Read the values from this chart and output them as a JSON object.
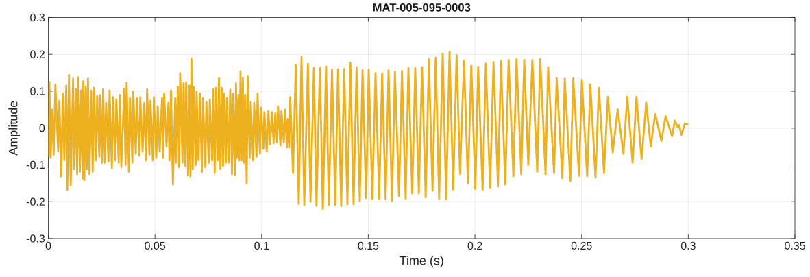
{
  "chart_data": {
    "type": "line",
    "title": "MAT-005-095-0003",
    "xlabel": "Time (s)",
    "ylabel": "Amplitude",
    "x": [
      0.0002,
      0.0005,
      0.0011,
      0.0018,
      0.0025,
      0.0033,
      0.0046,
      0.0052,
      0.006,
      0.0068,
      0.0075,
      0.0084,
      0.0089,
      0.0097,
      0.0105,
      0.0116,
      0.0122,
      0.0129,
      0.0135,
      0.014,
      0.0148,
      0.0153,
      0.0161,
      0.0164,
      0.0169,
      0.0175,
      0.018,
      0.0186,
      0.0193,
      0.0201,
      0.0208,
      0.0214,
      0.0223,
      0.0229,
      0.0239,
      0.0244,
      0.0251,
      0.0257,
      0.0265,
      0.0271,
      0.0282,
      0.0287,
      0.0298,
      0.0303,
      0.0314,
      0.0319,
      0.033,
      0.0335,
      0.0342,
      0.0356,
      0.0362,
      0.0367,
      0.0378,
      0.0383,
      0.0394,
      0.0398,
      0.041,
      0.0415,
      0.0426,
      0.0431,
      0.0442,
      0.045,
      0.0458,
      0.0463,
      0.0474,
      0.0479,
      0.049,
      0.0495,
      0.0506,
      0.0513,
      0.0522,
      0.0533,
      0.0538,
      0.0543,
      0.0554,
      0.0563,
      0.0568,
      0.0575,
      0.0584,
      0.0595,
      0.0599,
      0.0607,
      0.0613,
      0.0618,
      0.0629,
      0.0634,
      0.0642,
      0.0646,
      0.0655,
      0.0661,
      0.0666,
      0.0671,
      0.0677,
      0.0682,
      0.0691,
      0.0695,
      0.0704,
      0.0711,
      0.072,
      0.0725,
      0.0736,
      0.0741,
      0.0752,
      0.0757,
      0.0768,
      0.0773,
      0.078,
      0.0786,
      0.0794,
      0.08,
      0.0807,
      0.0813,
      0.0819,
      0.0824,
      0.0832,
      0.0837,
      0.0845,
      0.0853,
      0.0861,
      0.0867,
      0.0874,
      0.088,
      0.0885,
      0.0891,
      0.0896,
      0.0901,
      0.0907,
      0.0912,
      0.0917,
      0.0923,
      0.093,
      0.0935,
      0.0944,
      0.0949,
      0.096,
      0.0965,
      0.0976,
      0.0981,
      0.0992,
      0.0997,
      0.1008,
      0.1013,
      0.1024,
      0.1032,
      0.104,
      0.1048,
      0.1056,
      0.1064,
      0.1072,
      0.1077,
      0.1088,
      0.1093,
      0.1104,
      0.111,
      0.1118,
      0.1122,
      0.1129,
      0.1134,
      0.1147,
      0.116,
      0.1174,
      0.1187,
      0.12,
      0.1217,
      0.1229,
      0.1245,
      0.1257,
      0.1273,
      0.1287,
      0.1302,
      0.1315,
      0.133,
      0.1345,
      0.1358,
      0.1373,
      0.1387,
      0.1402,
      0.1416,
      0.1431,
      0.1445,
      0.146,
      0.1473,
      0.149,
      0.1502,
      0.1519,
      0.1534,
      0.1551,
      0.1565,
      0.1581,
      0.1595,
      0.1611,
      0.1625,
      0.1644,
      0.1658,
      0.1675,
      0.1688,
      0.1706,
      0.172,
      0.1737,
      0.1752,
      0.1769,
      0.1784,
      0.1801,
      0.1816,
      0.1832,
      0.1849,
      0.1865,
      0.1881,
      0.1898,
      0.1914,
      0.193,
      0.1949,
      0.1967,
      0.1983,
      0.2002,
      0.2015,
      0.2036,
      0.2051,
      0.2071,
      0.2087,
      0.2108,
      0.2122,
      0.2142,
      0.2158,
      0.218,
      0.2195,
      0.2217,
      0.2231,
      0.225,
      0.2269,
      0.2292,
      0.2306,
      0.2331,
      0.2343,
      0.2371,
      0.2383,
      0.241,
      0.2421,
      0.2447,
      0.2461,
      0.2488,
      0.2501,
      0.2526,
      0.2541,
      0.2565,
      0.2581,
      0.2605,
      0.2623,
      0.2646,
      0.2669,
      0.2696,
      0.2714,
      0.2739,
      0.2757,
      0.2781,
      0.2803,
      0.2824,
      0.2845,
      0.2874,
      0.2894,
      0.2924,
      0.2937,
      0.295,
      0.2957,
      0.2968,
      0.2984,
      0.2996
    ],
    "series": [
      {
        "color": "#EDB120",
        "values": [
          -0.075,
          0.124,
          -0.081,
          0.05,
          -0.072,
          0.118,
          -0.063,
          0.074,
          -0.131,
          0.093,
          -0.087,
          0.115,
          -0.168,
          0.144,
          -0.156,
          0.134,
          -0.112,
          0.106,
          -0.125,
          0.138,
          -0.119,
          0.102,
          -0.137,
          0.127,
          -0.141,
          0.112,
          -0.112,
          0.134,
          -0.125,
          0.102,
          -0.119,
          0.109,
          -0.088,
          0.087,
          -0.078,
          0.09,
          -0.094,
          0.106,
          -0.094,
          0.068,
          -0.091,
          0.102,
          -0.109,
          0.084,
          -0.088,
          0.078,
          -0.094,
          0.09,
          -0.106,
          0.107,
          -0.1,
          0.122,
          -0.119,
          0.081,
          -0.094,
          0.099,
          -0.069,
          0.081,
          -0.075,
          0.084,
          -0.063,
          0.068,
          -0.088,
          0.106,
          -0.072,
          0.074,
          -0.088,
          0.084,
          -0.081,
          0.059,
          -0.063,
          0.081,
          -0.081,
          0.093,
          -0.05,
          0.068,
          -0.088,
          0.102,
          -0.153,
          0.081,
          -0.094,
          0.112,
          -0.106,
          0.149,
          -0.094,
          0.121,
          -0.103,
          0.124,
          -0.128,
          0.115,
          -0.131,
          0.188,
          -0.112,
          0.112,
          -0.1,
          0.099,
          -0.088,
          0.093,
          -0.119,
          0.081,
          -0.106,
          0.071,
          -0.094,
          0.078,
          -0.088,
          0.106,
          -0.122,
          0.109,
          -0.088,
          0.136,
          -0.112,
          0.109,
          -0.103,
          0.093,
          -0.094,
          0.081,
          -0.094,
          0.104,
          -0.125,
          0.093,
          -0.128,
          0.121,
          -0.081,
          0.09,
          -0.088,
          0.154,
          -0.088,
          0.137,
          -0.094,
          0.09,
          -0.15,
          0.14,
          -0.081,
          0.071,
          -0.088,
          0.068,
          -0.078,
          0.093,
          -0.069,
          0.056,
          -0.056,
          0.043,
          -0.063,
          0.046,
          -0.044,
          0.043,
          -0.041,
          0.04,
          -0.038,
          0.059,
          -0.047,
          0.046,
          -0.038,
          0.05,
          -0.053,
          0.025,
          -0.053,
          0.084,
          -0.122,
          0.171,
          -0.206,
          0.193,
          -0.209,
          0.174,
          -0.2,
          0.163,
          -0.211,
          0.163,
          -0.221,
          0.167,
          -0.209,
          0.159,
          -0.209,
          0.159,
          -0.212,
          0.16,
          -0.207,
          0.177,
          -0.207,
          0.165,
          -0.198,
          0.157,
          -0.19,
          0.159,
          -0.192,
          0.149,
          -0.192,
          0.148,
          -0.193,
          0.157,
          -0.198,
          0.152,
          -0.185,
          0.155,
          -0.192,
          0.163,
          -0.177,
          0.163,
          -0.177,
          0.165,
          -0.188,
          0.187,
          -0.17,
          0.191,
          -0.193,
          0.202,
          -0.193,
          0.207,
          -0.167,
          0.198,
          -0.124,
          0.183,
          -0.15,
          0.169,
          -0.165,
          0.166,
          -0.168,
          0.175,
          -0.162,
          0.179,
          -0.159,
          0.182,
          -0.153,
          0.185,
          -0.131,
          0.187,
          -0.125,
          0.185,
          -0.1,
          0.185,
          -0.119,
          0.187,
          -0.125,
          0.165,
          -0.122,
          0.135,
          -0.136,
          0.134,
          -0.144,
          0.135,
          -0.13,
          0.131,
          -0.131,
          0.119,
          -0.134,
          0.109,
          -0.122,
          0.085,
          -0.066,
          0.051,
          -0.069,
          0.085,
          -0.094,
          0.085,
          -0.084,
          0.069,
          -0.05,
          0.038,
          -0.035,
          0.032,
          -0.022,
          0.02,
          0.003,
          0.008,
          -0.019,
          0.012,
          0.01
        ]
      }
    ],
    "xlim": [
      0,
      0.35
    ],
    "ylim": [
      -0.3,
      0.3
    ],
    "xticks": [
      0,
      0.05,
      0.1,
      0.15,
      0.2,
      0.25,
      0.3,
      0.35
    ],
    "yticks": [
      -0.3,
      -0.2,
      -0.1,
      0,
      0.1,
      0.2,
      0.3
    ],
    "grid": true
  }
}
